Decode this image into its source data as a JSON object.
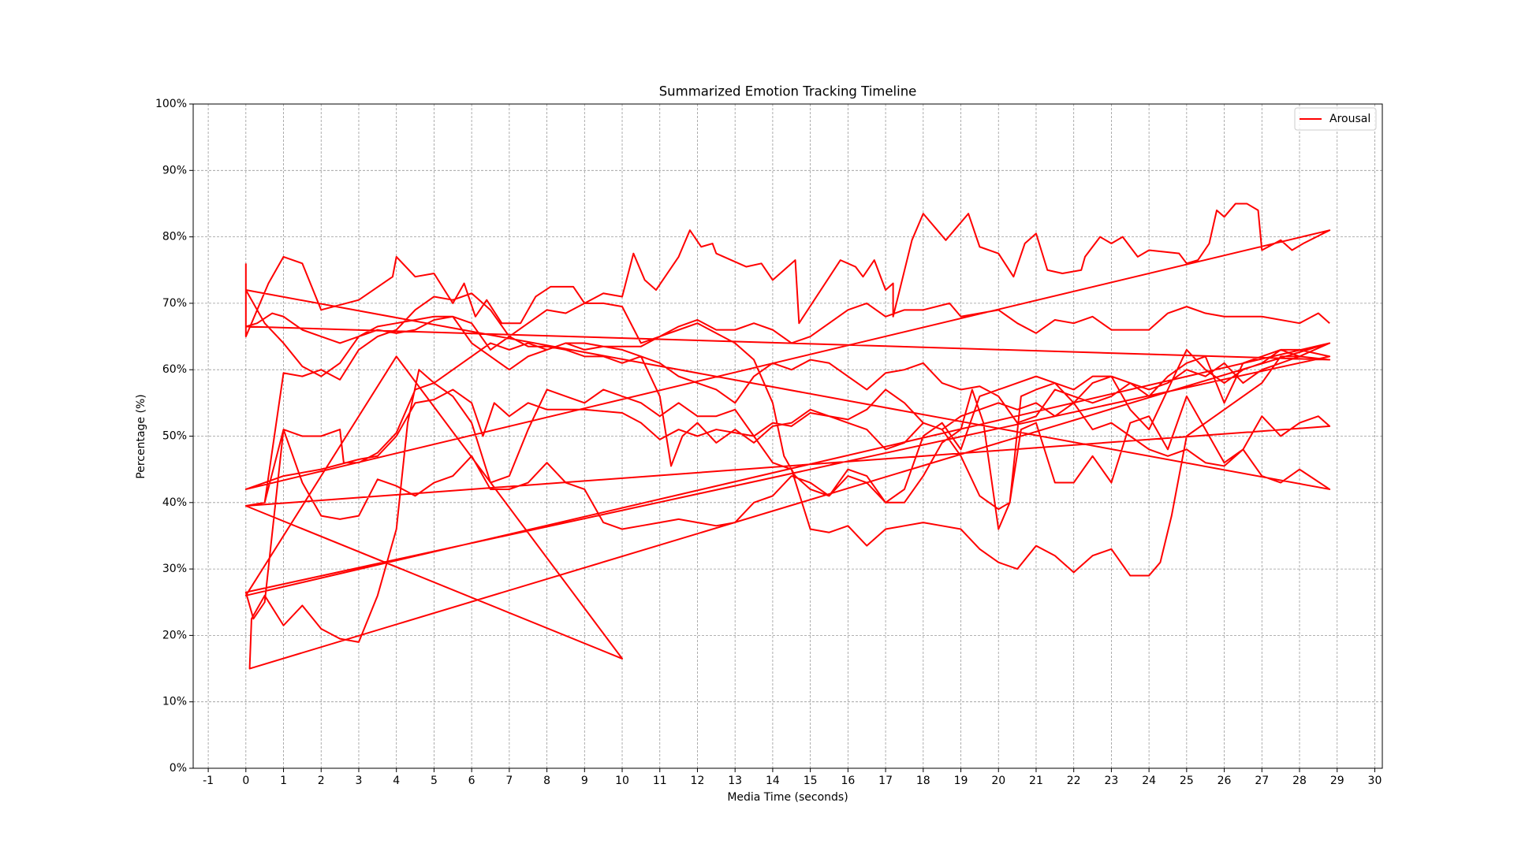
{
  "chart_data": {
    "type": "line",
    "title": "Summarized Emotion Tracking Timeline",
    "x_label": "Media Time (seconds)",
    "y_label": "Percentage (%)",
    "xlim": [
      -1.4,
      30.2
    ],
    "ylim": [
      0,
      100
    ],
    "xticks": [
      -1,
      0,
      1,
      2,
      3,
      4,
      5,
      6,
      7,
      8,
      9,
      10,
      11,
      12,
      13,
      14,
      15,
      16,
      17,
      18,
      19,
      20,
      21,
      22,
      23,
      24,
      25,
      26,
      27,
      28,
      29,
      30
    ],
    "yticks": [
      {
        "value": 0,
        "label": "0%"
      },
      {
        "value": 10,
        "label": "10%"
      },
      {
        "value": 20,
        "label": "20%"
      },
      {
        "value": 30,
        "label": "30%"
      },
      {
        "value": 40,
        "label": "40%"
      },
      {
        "value": 50,
        "label": "50%"
      },
      {
        "value": 60,
        "label": "60%"
      },
      {
        "value": 70,
        "label": "70%"
      },
      {
        "value": 80,
        "label": "80%"
      },
      {
        "value": 90,
        "label": "90%"
      },
      {
        "value": 100,
        "label": "100%"
      }
    ],
    "grid": true,
    "legend": "upper right",
    "series": [
      {
        "name": "Arousal",
        "color": "#ff0000",
        "x": [
          0,
          0,
          0.6,
          1,
          1.5,
          2,
          3,
          3.9,
          4,
          4.5,
          5,
          5.5,
          5.8,
          6.1,
          6.4,
          6.8,
          7.3,
          7.7,
          8.1,
          8.7,
          9,
          9.5,
          10,
          10.3,
          10.6,
          10.9,
          11.5,
          11.8,
          12.1,
          12.4,
          12.5,
          13.3,
          13.7,
          14,
          14.6,
          14.7,
          15.8,
          16.2,
          16.4,
          16.7,
          17,
          17.2,
          17.2,
          17.7,
          18,
          18.6,
          19.2,
          19.5,
          20,
          20.4,
          20.7,
          21,
          21.3,
          21.7,
          22.2,
          22.3,
          22.7,
          23,
          23.3,
          23.7,
          24,
          24.8,
          25,
          25.3,
          25.6,
          25.8,
          26,
          26.3,
          26.6,
          26.9,
          27,
          27.5,
          27.8,
          28.1,
          28.8,
          0,
          1,
          2,
          3,
          3.5,
          4,
          4.5,
          5,
          5.5,
          6,
          6.3,
          6.6,
          7,
          7.5,
          8,
          9,
          10,
          10.5,
          11,
          11.5,
          12,
          12.5,
          13,
          13.5,
          14,
          14.5,
          15,
          16,
          16.5,
          17,
          17.5,
          18,
          18.5,
          19,
          19.5,
          20,
          20.5,
          21,
          21.5,
          22,
          22.5,
          23,
          23.5,
          24,
          24.5,
          25,
          25.5,
          26,
          26.5,
          27,
          27.5,
          28,
          28.8,
          0,
          0.5,
          1,
          1.5,
          2,
          2.5,
          3,
          3.5,
          4,
          4.5,
          5,
          5.5,
          6,
          6.5,
          7,
          7.5,
          8,
          8.5,
          9,
          9.5,
          10,
          10.5,
          11,
          11.5,
          12,
          12.5,
          13,
          13.5,
          14,
          14.5,
          15,
          15.5,
          16,
          16.5,
          17,
          17.5,
          18,
          18.5,
          19,
          19.5,
          20,
          20.5,
          21,
          21.5,
          22,
          22.5,
          23,
          23.5,
          24,
          24.5,
          25,
          25.5,
          26,
          26.5,
          27,
          27.5,
          28,
          28.8,
          0,
          0.3,
          0.7,
          1,
          1.5,
          2,
          2.5,
          3,
          3.5,
          4,
          4.5,
          5,
          5.5,
          6,
          6.5,
          7,
          7.5,
          8,
          8.5,
          9,
          9.5,
          10,
          10.5,
          11,
          11.3,
          11.6,
          12,
          12.5,
          13,
          13.5,
          14,
          14.5,
          15,
          15.5,
          16,
          16.5,
          17,
          17.5,
          18,
          18.5,
          19,
          19.5,
          20,
          20.3,
          20.6,
          21,
          21.5,
          22,
          22.5,
          23,
          23.5,
          24,
          24.5,
          25,
          25.5,
          26,
          26.5,
          27,
          27.5,
          28,
          28.5,
          28.8,
          0,
          0.5,
          1,
          1.5,
          2,
          2.5,
          2.6,
          3,
          3.5,
          4,
          4.5,
          5,
          5.5,
          6,
          6.5,
          7,
          7.5,
          8,
          8.5,
          9,
          9.5,
          10,
          10.5,
          11,
          11.5,
          12,
          12.5,
          13,
          13.5,
          14,
          14.3,
          14.6,
          15,
          15.5,
          16,
          16.5,
          17,
          17.5,
          18,
          18.5,
          19,
          19.3,
          19.6,
          20,
          20.3,
          20.6,
          21,
          21.5,
          22,
          22.5,
          23,
          23.5,
          24,
          24.5,
          25,
          25.5,
          26,
          26.5,
          27,
          27.5,
          28,
          28.8,
          0,
          0.2,
          0.5,
          1,
          1.5,
          2,
          2.5,
          3,
          3.5,
          4,
          4.5,
          5,
          5.5,
          6,
          6.5,
          7,
          7.5,
          8,
          8.5,
          9,
          9.5,
          10,
          10.5,
          11,
          11.5,
          12,
          12.5,
          13,
          13.5,
          14,
          14.5,
          15,
          15.5,
          16,
          16.5,
          17,
          17.5,
          18,
          18.5,
          19,
          19.5,
          20,
          20.5,
          21,
          21.5,
          22,
          22.5,
          23,
          23.5,
          24,
          24.5,
          25,
          25.5,
          26,
          26.5,
          27,
          27.5,
          28,
          28.8,
          0.1,
          0.15,
          0.5,
          1,
          1.5,
          2,
          2.5,
          3,
          3.5,
          4,
          4.3,
          4.6,
          5,
          5.5,
          6,
          6.5,
          7,
          7.5,
          8,
          8.5,
          9,
          9.5,
          10,
          10.5,
          11,
          11.5,
          12,
          12.5,
          13,
          13.5,
          14,
          14.5,
          15,
          15.5,
          16,
          16.5,
          17,
          17.5,
          18,
          18.5,
          19,
          19.5,
          20,
          20.5,
          21,
          21.5,
          22,
          22.5,
          23,
          23.5,
          24,
          24.3,
          24.6,
          25,
          25.5,
          26,
          26.5,
          27,
          27.5,
          28,
          28.8,
          0,
          4,
          10,
          0,
          0.5,
          1,
          1.5,
          2,
          2.5,
          3,
          3.5,
          4,
          4.5,
          5,
          5.5,
          6,
          6.5,
          7,
          7.5,
          8,
          8.5,
          9,
          9.5,
          10,
          10.5,
          11,
          11.5,
          12,
          12.5,
          13,
          13.5,
          14,
          14.5,
          15,
          15.5,
          16,
          16.5,
          17,
          17.5,
          18,
          18.7,
          19,
          20,
          20.5,
          21,
          21.5,
          22,
          22.5,
          23,
          24,
          24.5,
          25,
          25.5,
          26,
          27,
          28,
          28.5,
          28.8
        ],
        "values": [
          76,
          65,
          73,
          77,
          76,
          69,
          70.5,
          74,
          77,
          74,
          74.5,
          70,
          73,
          68,
          70.5,
          67,
          67,
          71,
          72.5,
          72.5,
          70,
          71.5,
          71,
          77.5,
          73.5,
          72,
          77,
          81,
          78.5,
          79,
          77.5,
          75.5,
          76,
          73.5,
          76.5,
          67,
          76.5,
          75.5,
          74,
          76.5,
          72,
          73,
          68,
          79.5,
          83.5,
          79.5,
          83.5,
          78.5,
          77.5,
          74,
          79,
          80.5,
          75,
          74.5,
          75,
          77,
          80,
          79,
          80,
          77,
          78,
          77.5,
          76,
          76.5,
          79,
          84,
          83,
          85,
          85,
          84,
          78,
          79.5,
          78,
          79,
          81,
          42,
          44,
          45,
          46.5,
          47,
          50,
          55,
          55.5,
          57,
          55,
          50,
          55,
          53,
          55,
          54,
          54,
          53.5,
          52,
          49.5,
          51,
          50,
          51,
          50.5,
          50,
          52,
          51.5,
          53.5,
          52.5,
          54,
          57,
          55,
          52,
          51,
          53,
          54,
          55,
          54,
          55,
          53,
          55,
          51,
          52,
          50,
          48,
          47,
          48,
          46,
          45.5,
          48,
          44,
          43,
          45,
          42,
          72,
          67,
          64,
          60.5,
          59,
          61,
          65,
          66.5,
          67,
          67.5,
          68,
          68,
          67,
          63,
          65,
          63.5,
          63.5,
          63,
          62,
          62,
          61,
          62,
          61,
          59,
          58,
          57,
          55,
          59,
          61,
          60,
          61.5,
          61,
          59,
          57,
          59.5,
          60,
          61,
          58,
          57,
          57.5,
          56,
          52,
          53,
          57,
          56,
          55,
          56,
          58,
          57,
          58,
          60,
          59,
          61,
          58,
          60,
          61,
          62,
          61.5,
          66.5,
          67,
          68.5,
          68,
          66,
          65,
          64,
          65,
          66,
          65.5,
          66,
          67.5,
          68,
          64,
          62,
          60,
          62,
          63,
          64,
          64,
          63.5,
          63,
          62,
          56,
          45.5,
          50,
          52,
          49,
          51,
          49,
          51.5,
          52,
          54,
          53,
          52,
          51,
          48,
          49,
          52,
          51,
          47,
          41,
          39,
          40,
          51,
          52,
          43,
          43,
          47,
          43,
          52,
          53,
          48,
          56,
          51,
          46,
          48,
          53,
          50,
          52,
          53,
          51.5,
          39.5,
          40,
          51,
          50,
          50,
          51,
          46,
          46,
          47.5,
          50.5,
          57,
          58,
          60,
          62,
          64,
          63,
          64,
          63,
          64,
          63,
          63.5,
          63.5,
          63.5,
          65,
          66,
          67,
          65.5,
          64,
          61.5,
          55,
          47,
          44,
          42,
          41,
          44,
          43,
          40,
          40,
          44,
          49,
          51,
          57,
          52,
          36,
          40,
          56,
          57,
          58,
          57,
          59,
          59,
          54,
          51,
          57,
          63,
          60,
          58,
          60,
          61,
          63,
          63,
          62,
          26.5,
          22.5,
          25,
          51,
          43,
          38,
          37.5,
          38,
          43.5,
          42.5,
          41,
          43,
          44,
          47,
          42,
          42,
          43,
          46,
          43,
          42,
          37,
          36,
          36.5,
          37,
          37.5,
          37,
          36.5,
          37,
          40,
          41,
          44,
          43,
          41,
          45,
          44,
          40,
          42,
          50,
          52,
          48,
          56,
          57,
          58,
          59,
          58,
          55,
          58,
          59,
          58,
          56,
          59,
          61,
          62,
          55,
          61,
          62,
          63,
          62,
          64,
          15,
          22.5,
          26,
          21.5,
          24.5,
          21,
          19.5,
          19,
          26,
          36,
          52,
          60,
          58,
          56,
          52,
          43,
          44,
          51,
          57,
          56,
          55,
          57,
          56,
          55,
          53,
          55,
          53,
          53,
          54,
          50,
          46,
          45,
          36,
          35.5,
          36.5,
          33.5,
          36,
          36.5,
          37,
          36.5,
          36,
          33,
          31,
          30,
          33.5,
          32,
          29.5,
          32,
          33,
          29,
          29,
          31,
          38,
          50,
          52,
          54,
          56,
          58,
          62,
          62,
          64,
          26,
          62,
          16.5,
          39.5,
          40,
          59.5,
          59,
          60,
          58.5,
          63,
          65,
          66,
          69,
          71,
          70.5,
          71.5,
          69,
          65,
          67,
          69,
          68.5,
          70,
          70,
          69.5,
          64,
          65,
          66.5,
          67.5,
          66,
          66,
          67,
          66,
          64,
          65,
          67,
          69,
          70,
          68,
          69,
          69,
          70,
          68,
          69,
          67,
          65.5,
          67.5,
          67,
          68,
          66,
          66,
          68.5,
          69.5,
          68.5,
          68,
          68,
          67,
          68.5,
          67
        ]
      }
    ]
  }
}
